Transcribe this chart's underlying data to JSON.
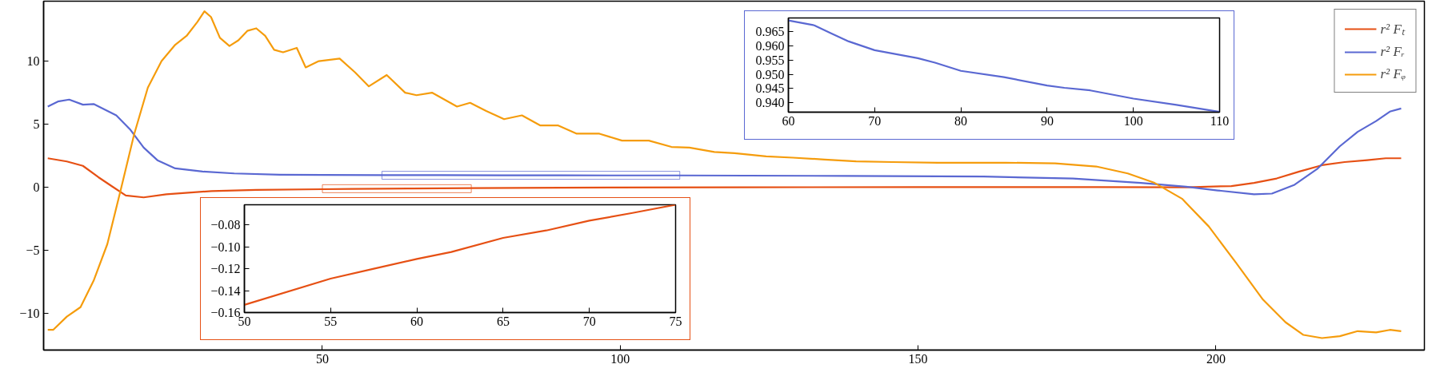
{
  "chart_data": [
    {
      "type": "line",
      "xlim": [
        3.2,
        235
      ],
      "ylim": [
        -12.9,
        14.75
      ],
      "xticks": [
        50,
        100,
        150,
        200
      ],
      "yticks": [
        {
          "value": -10,
          "label": "−10"
        },
        {
          "value": -5,
          "label": "−5"
        },
        0,
        5,
        10
      ],
      "grid": false,
      "legend": "top right",
      "series": [
        {
          "name": "r² Fₜ",
          "color": "#e65014",
          "x": [
            3.9,
            7.1,
            9.8,
            12.4,
            14.7,
            17,
            20,
            23.8,
            31.4,
            38.9,
            50,
            55,
            60,
            65,
            70,
            75,
            90,
            120,
            150,
            180,
            195,
            202.6,
            206.4,
            210.2,
            214,
            217.8,
            221.6,
            225.4,
            228.5,
            231.1
          ],
          "values": [
            2.3,
            2.05,
            1.7,
            0.8,
            0.07,
            -0.65,
            -0.8,
            -0.55,
            -0.3,
            -0.2,
            -0.15,
            -0.13,
            -0.11,
            -0.09,
            -0.08,
            -0.06,
            -0.03,
            0.0,
            0.02,
            0.02,
            0.0,
            0.1,
            0.35,
            0.7,
            1.25,
            1.75,
            2.0,
            2.15,
            2.3,
            2.3
          ]
        },
        {
          "name": "r² Fᵣ",
          "color": "#5a68d2",
          "x": [
            3.9,
            5.6,
            7.5,
            9.8,
            11.6,
            15.4,
            17.7,
            20,
            22.3,
            25.3,
            29.9,
            35.2,
            42.9,
            50,
            60,
            70,
            80,
            90,
            100,
            110,
            138,
            161,
            176,
            187.4,
            195,
            200.3,
            206.4,
            209.4,
            213.2,
            217,
            220.8,
            223.8,
            226.9,
            229.2,
            231.1
          ],
          "values": [
            6.4,
            6.8,
            6.95,
            6.55,
            6.6,
            5.7,
            4.6,
            3.15,
            2.15,
            1.5,
            1.25,
            1.1,
            1.0,
            0.98,
            0.97,
            0.96,
            0.95,
            0.95,
            0.94,
            0.94,
            0.9,
            0.85,
            0.7,
            0.35,
            0.05,
            -0.25,
            -0.55,
            -0.5,
            0.2,
            1.45,
            3.25,
            4.4,
            5.25,
            6.0,
            6.25
          ]
        },
        {
          "name": "r² Fᵩ",
          "color": "#f59c0c",
          "x": [
            3.9,
            4.8,
            7.1,
            9.4,
            11.6,
            13.9,
            16.2,
            18.4,
            20.7,
            23,
            25.3,
            27.2,
            29,
            30.2,
            31.3,
            32.8,
            34.4,
            35.9,
            37.4,
            38.9,
            40.4,
            41.9,
            43.4,
            45.7,
            47.2,
            49.4,
            52.9,
            55.5,
            57.8,
            60.8,
            63.9,
            65.8,
            68.4,
            72.6,
            74.8,
            77.5,
            80.5,
            83.5,
            86.6,
            89.6,
            92.7,
            96.5,
            100.3,
            104.8,
            108.6,
            111.6,
            115.8,
            119.2,
            124.5,
            129,
            134.3,
            139.6,
            145.7,
            153.3,
            164.7,
            173,
            179.9,
            185.2,
            189.7,
            194.3,
            198.8,
            203.4,
            207.9,
            211.7,
            214.7,
            217.8,
            220.8,
            223.8,
            226.9,
            229.2,
            231.1
          ],
          "values": [
            -11.3,
            -11.3,
            -10.25,
            -9.5,
            -7.4,
            -4.5,
            -0.1,
            4.2,
            7.9,
            10.0,
            11.3,
            12.0,
            13.1,
            13.95,
            13.5,
            11.85,
            11.2,
            11.65,
            12.4,
            12.6,
            12.0,
            10.9,
            10.7,
            11.05,
            9.5,
            10.0,
            10.2,
            9.1,
            8.0,
            8.9,
            7.5,
            7.3,
            7.5,
            6.4,
            6.7,
            6.05,
            5.4,
            5.7,
            4.9,
            4.9,
            4.25,
            4.25,
            3.7,
            3.7,
            3.2,
            3.15,
            2.8,
            2.7,
            2.45,
            2.35,
            2.2,
            2.05,
            2.0,
            1.95,
            1.95,
            1.9,
            1.65,
            1.1,
            0.35,
            -0.9,
            -3.1,
            -6.0,
            -8.9,
            -10.7,
            -11.7,
            -11.95,
            -11.8,
            -11.4,
            -11.5,
            -11.3,
            -11.4
          ]
        }
      ]
    },
    {
      "type": "line",
      "xlim": [
        50,
        75
      ],
      "ylim": [
        -0.16,
        -0.0615
      ],
      "xticks": [
        50,
        55,
        60,
        65,
        70,
        75
      ],
      "yticks": [
        {
          "value": -0.16,
          "label": "−0.16"
        },
        {
          "value": -0.14,
          "label": "−0.14"
        },
        {
          "value": -0.12,
          "label": "−0.12"
        },
        {
          "value": -0.1,
          "label": "−0.10"
        },
        {
          "value": -0.08,
          "label": "−0.08"
        }
      ],
      "grid": false,
      "series": [
        {
          "color": "#e65014",
          "x": [
            50,
            55,
            57.5,
            60,
            62,
            65,
            67.5,
            70,
            72.5,
            75
          ],
          "values": [
            -0.153,
            -0.129,
            -0.12,
            -0.111,
            -0.1046,
            -0.0918,
            -0.085,
            -0.076,
            -0.069,
            -0.0615
          ]
        }
      ]
    },
    {
      "type": "line",
      "xlim": [
        60,
        110
      ],
      "ylim": [
        0.9366,
        0.9699
      ],
      "xticks": [
        60,
        70,
        80,
        90,
        100,
        110
      ],
      "yticks": [
        {
          "value": 0.94,
          "label": "0.940"
        },
        {
          "value": 0.945,
          "label": "0.945"
        },
        {
          "value": 0.95,
          "label": "0.950"
        },
        {
          "value": 0.955,
          "label": "0.955"
        },
        {
          "value": 0.96,
          "label": "0.960"
        },
        {
          "value": 0.965,
          "label": "0.965"
        }
      ],
      "grid": false,
      "series": [
        {
          "color": "#5a68d2",
          "x": [
            60,
            63,
            65,
            67,
            70,
            72.5,
            75,
            77,
            80,
            85,
            90,
            92,
            95,
            100,
            105,
            110
          ],
          "values": [
            0.969,
            0.9673,
            0.9644,
            0.9616,
            0.9585,
            0.9571,
            0.9557,
            0.9541,
            0.9512,
            0.949,
            0.946,
            0.9452,
            0.9443,
            0.9414,
            0.9392,
            0.9367
          ]
        }
      ]
    }
  ]
}
